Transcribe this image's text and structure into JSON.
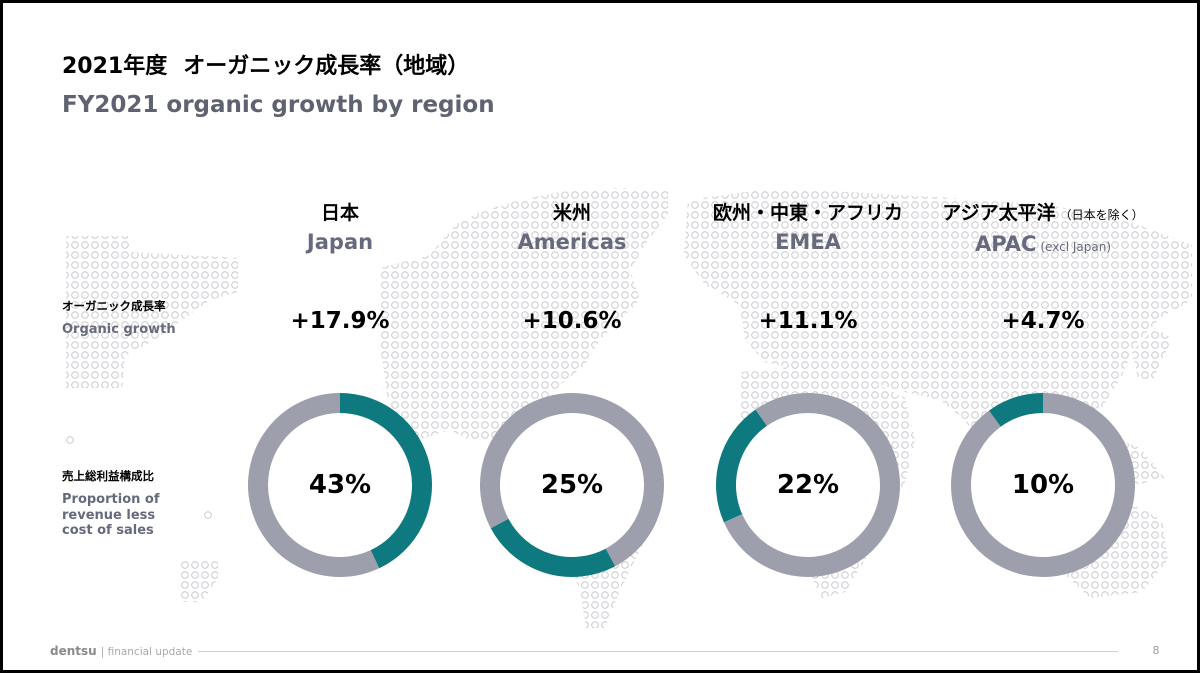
{
  "slide": {
    "title_ja_year": "2021年度",
    "title_ja_main": "オーガニック成長率（地域）",
    "title_en": "FY2021 organic growth by region",
    "row_labels": {
      "growth_ja": "オーガニック成長率",
      "growth_en": "Organic growth",
      "share_ja": "売上総利益構成比",
      "share_en_lines": [
        "Proportion of",
        "revenue less",
        "cost of sales"
      ]
    },
    "regions": [
      {
        "name_ja": "日本",
        "name_en": "Japan",
        "organic_growth": "+17.9%"
      },
      {
        "name_ja": "米州",
        "name_en": "Americas",
        "organic_growth": "+10.6%"
      },
      {
        "name_ja": "欧州・中東・アフリカ",
        "name_en": "EMEA",
        "organic_growth": "+11.1%"
      },
      {
        "name_ja": "アジア太平洋",
        "note_ja": "（日本を除く）",
        "name_en": "APAC",
        "note_en": "(excl Japan)",
        "organic_growth": "+4.7%"
      }
    ],
    "footer": {
      "brand": "dentsu",
      "section": "| financial update",
      "page_number": "8"
    }
  },
  "colors": {
    "accent": "#0e7a80",
    "remainder": "#9e9fac"
  },
  "chart_data": [
    {
      "type": "pie",
      "values": [
        43,
        57
      ],
      "value_label": "43%"
    },
    {
      "type": "pie",
      "values": [
        25,
        75
      ],
      "value_label": "25%"
    },
    {
      "type": "pie",
      "values": [
        22,
        78
      ],
      "value_label": "22%"
    },
    {
      "type": "pie",
      "values": [
        10,
        90
      ],
      "value_label": "10%"
    }
  ]
}
